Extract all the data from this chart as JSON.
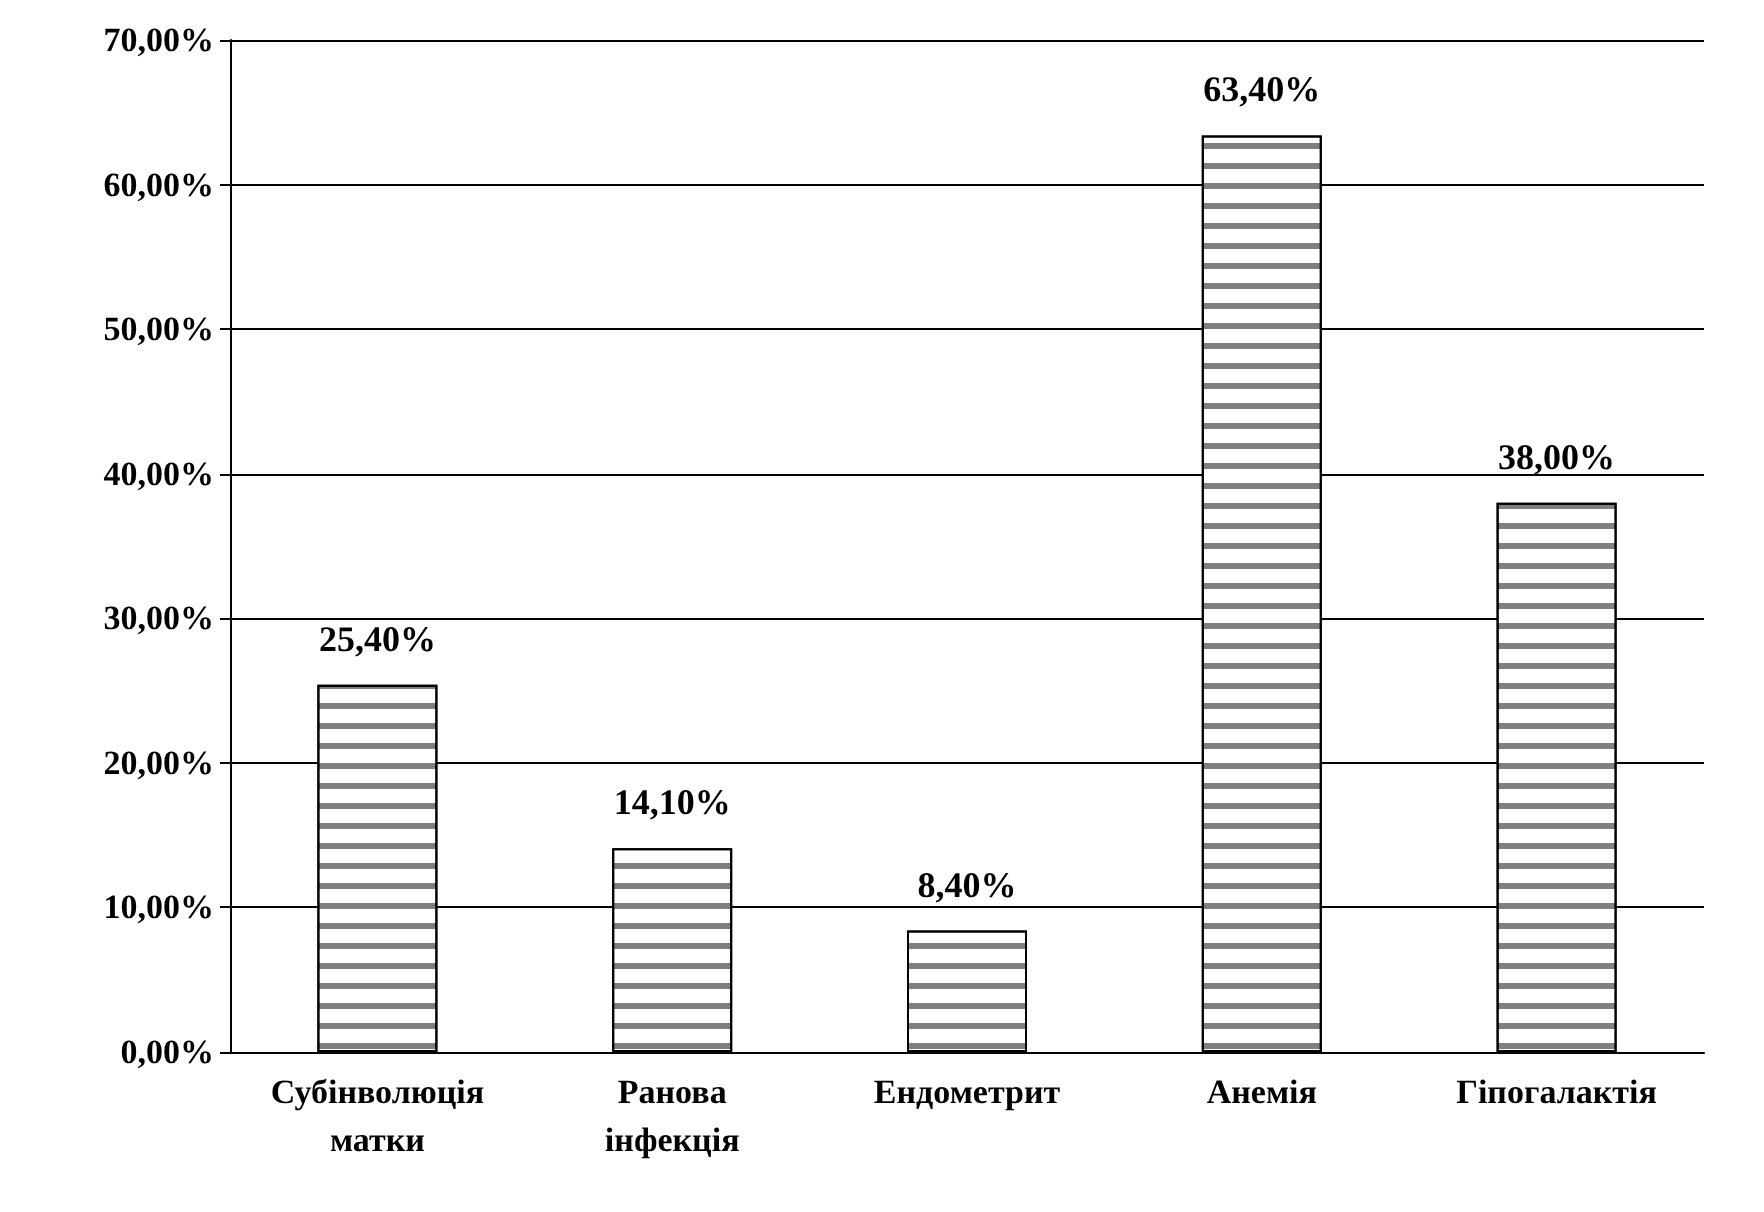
{
  "chart_data": {
    "type": "bar",
    "categories": [
      "Субінволюція матки",
      "Ранова інфекція",
      "Ендометрит",
      "Анемія",
      "Гіпогалактія"
    ],
    "values": [
      25.4,
      14.1,
      8.4,
      63.4,
      38.0
    ],
    "value_labels": [
      "25,40%",
      "14,10%",
      "8,40%",
      "63,40%",
      "38,00%"
    ],
    "color": "#ffffff",
    "ylim": [
      0,
      70
    ],
    "yticks": [
      {
        "value": 0,
        "label": "0,00%"
      },
      {
        "value": 10,
        "label": "10,00%"
      },
      {
        "value": 20,
        "label": "20,00%"
      },
      {
        "value": 30,
        "label": "30,00%"
      },
      {
        "value": 40,
        "label": "40,00%"
      },
      {
        "value": 50,
        "label": "50,00%"
      },
      {
        "value": 60,
        "label": "60,00%"
      },
      {
        "value": 70,
        "label": "70,00%"
      }
    ],
    "grid": "y"
  }
}
